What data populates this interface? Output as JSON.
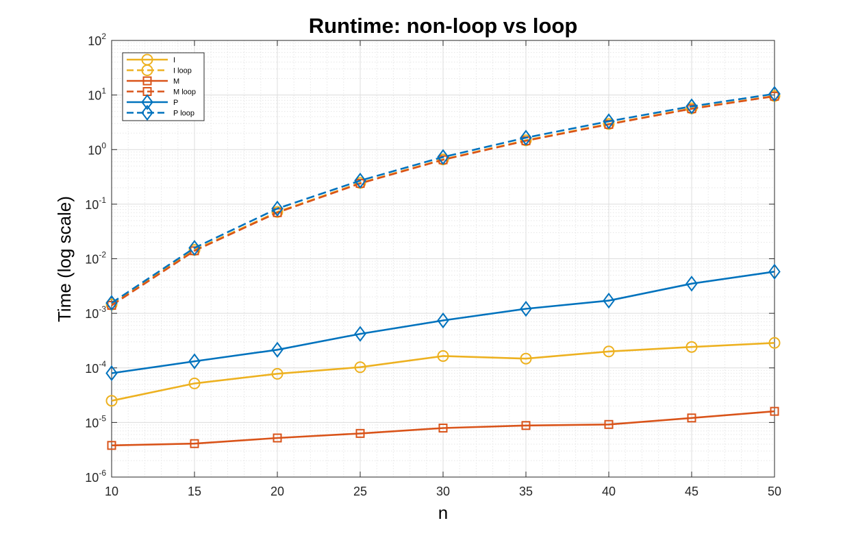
{
  "chart_data": {
    "type": "line",
    "title": "Runtime: non-loop vs loop",
    "xlabel": "n",
    "ylabel": "Time (log scale)",
    "yscale": "log",
    "xlim": [
      10,
      50
    ],
    "ylim": [
      1e-06,
      100
    ],
    "grid": true,
    "minor_grid": true,
    "legend_position": "top-left",
    "x": [
      10,
      15,
      20,
      25,
      30,
      35,
      40,
      45,
      50
    ],
    "x_tick_labels": [
      "10",
      "15",
      "20",
      "25",
      "30",
      "35",
      "40",
      "45",
      "50"
    ],
    "y_ticks": [
      {
        "value": 1e-06,
        "base": "10",
        "exp": "-6"
      },
      {
        "value": 1e-05,
        "base": "10",
        "exp": "-5"
      },
      {
        "value": 0.0001,
        "base": "10",
        "exp": "-4"
      },
      {
        "value": 0.001,
        "base": "10",
        "exp": "-3"
      },
      {
        "value": 0.01,
        "base": "10",
        "exp": "-2"
      },
      {
        "value": 0.1,
        "base": "10",
        "exp": "-1"
      },
      {
        "value": 1,
        "base": "10",
        "exp": "0"
      },
      {
        "value": 10,
        "base": "10",
        "exp": "1"
      },
      {
        "value": 100,
        "base": "10",
        "exp": "2"
      }
    ],
    "series": [
      {
        "name": "I",
        "color": "#EDB120",
        "dash": "solid",
        "marker": "circle",
        "values": [
          2.5e-05,
          5.2e-05,
          7.8e-05,
          0.000103,
          0.000165,
          0.000148,
          0.0002,
          0.000242,
          0.000287
        ]
      },
      {
        "name": "I loop",
        "color": "#EDB120",
        "dash": "dashed",
        "marker": "circle",
        "values": [
          0.00145,
          0.0145,
          0.072,
          0.245,
          0.66,
          1.48,
          2.95,
          5.7,
          9.6
        ]
      },
      {
        "name": "M",
        "color": "#D95319",
        "dash": "solid",
        "marker": "square",
        "values": [
          3.8e-06,
          4.1e-06,
          5.2e-06,
          6.3e-06,
          7.9e-06,
          8.8e-06,
          9.2e-06,
          1.21e-05,
          1.6e-05
        ]
      },
      {
        "name": "M loop",
        "color": "#D95319",
        "dash": "dashed",
        "marker": "square",
        "values": [
          0.0014,
          0.014,
          0.07,
          0.24,
          0.65,
          1.45,
          2.9,
          5.6,
          9.5
        ]
      },
      {
        "name": "P",
        "color": "#0072BD",
        "dash": "solid",
        "marker": "diamond",
        "values": [
          8e-05,
          0.000132,
          0.000215,
          0.00042,
          0.00074,
          0.00121,
          0.00171,
          0.0035,
          0.0058
        ]
      },
      {
        "name": "P loop",
        "color": "#0072BD",
        "dash": "dashed",
        "marker": "diamond",
        "values": [
          0.00155,
          0.0158,
          0.083,
          0.27,
          0.73,
          1.65,
          3.3,
          6.2,
          10.5
        ]
      }
    ]
  }
}
